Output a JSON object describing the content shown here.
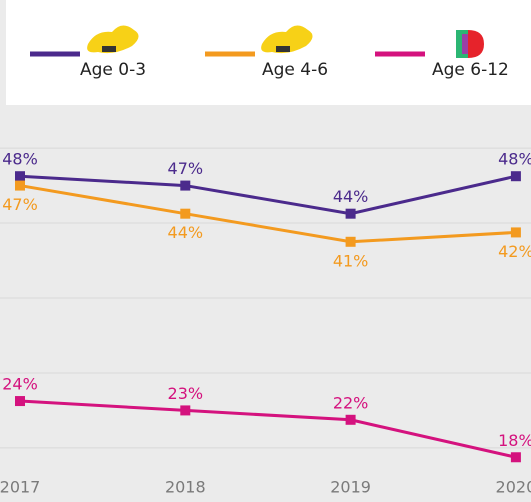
{
  "chart_data": {
    "type": "line",
    "categories": [
      "2017",
      "2018",
      "2019",
      "2020"
    ],
    "series": [
      {
        "name": "Age 0-3",
        "color": "#4b2a8c",
        "values": [
          48,
          47,
          44,
          48
        ],
        "value_labels": [
          "48%",
          "47%",
          "44%",
          "48%"
        ]
      },
      {
        "name": "Age 4-6",
        "color": "#f39a1f",
        "values": [
          47,
          44,
          41,
          42
        ],
        "value_labels": [
          "47%",
          "44%",
          "41%",
          "42%"
        ]
      },
      {
        "name": "Age 6-12",
        "color": "#d4127e",
        "values": [
          24,
          23,
          22,
          18
        ],
        "value_labels": [
          "24%",
          "23%",
          "22%",
          "18%"
        ]
      }
    ],
    "ylim": [
      16,
      54
    ],
    "yticks": [
      19,
      27,
      35,
      43,
      51
    ],
    "grid": true
  }
}
